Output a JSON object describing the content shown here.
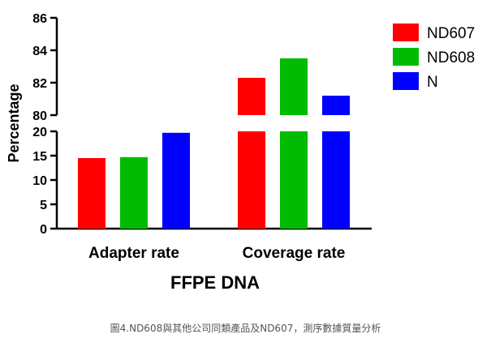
{
  "chart_data": {
    "type": "bar",
    "categories": [
      "Adapter rate",
      "Coverage rate"
    ],
    "series": [
      {
        "name": "ND607",
        "color": "#ff0000",
        "values": [
          14.5,
          82.3
        ]
      },
      {
        "name": "ND608",
        "color": "#00bb00",
        "values": [
          14.7,
          83.5
        ]
      },
      {
        "name": "N",
        "color": "#0000ff",
        "values": [
          19.7,
          81.2
        ]
      }
    ],
    "xlabel": "FFPE DNA",
    "ylabel": "Percentage",
    "y_axis_break": {
      "lower_segment": [
        0,
        20
      ],
      "upper_segment": [
        80,
        86
      ],
      "lower_ticks": [
        "0",
        "5",
        "10",
        "15",
        "20"
      ],
      "upper_ticks": [
        "80",
        "82",
        "84",
        "86"
      ]
    },
    "legend_position": "top-right",
    "grid": false
  },
  "caption": "圖4.ND608與其他公司同類產品及ND607，測序數據質量分析"
}
